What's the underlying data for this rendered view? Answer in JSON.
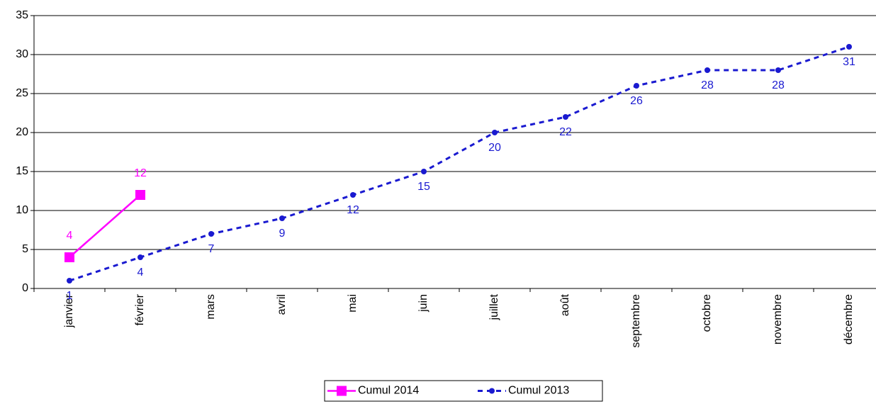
{
  "chart_data": {
    "type": "line",
    "categories": [
      "janvier",
      "février",
      "mars",
      "avril",
      "mai",
      "juin",
      "juillet",
      "août",
      "septembre",
      "octobre",
      "novembre",
      "décembre"
    ],
    "series": [
      {
        "name": "Cumul 2014",
        "color": "#ff00ff",
        "marker": "square",
        "dash": false,
        "label_position": "above",
        "values": [
          4,
          12,
          null,
          null,
          null,
          null,
          null,
          null,
          null,
          null,
          null,
          null
        ]
      },
      {
        "name": "Cumul 2013",
        "color": "#1a1ad0",
        "marker": "circle",
        "dash": true,
        "label_position": "below",
        "values": [
          1,
          4,
          7,
          9,
          12,
          15,
          20,
          22,
          26,
          28,
          28,
          31
        ]
      }
    ],
    "ylim": [
      0,
      35
    ],
    "yticks": [
      0,
      5,
      10,
      15,
      20,
      25,
      30,
      35
    ],
    "grid": true,
    "legend": "bottom"
  }
}
